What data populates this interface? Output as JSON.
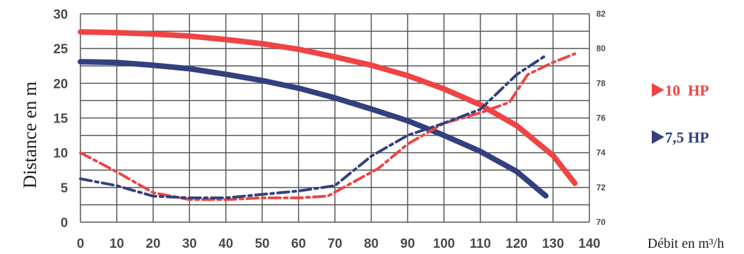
{
  "chart_data": {
    "type": "line",
    "ylabel": "Distance en m",
    "xlabel": "Débit en m³/h",
    "xlim": [
      0,
      140
    ],
    "ylim": [
      0,
      30
    ],
    "y2lim": [
      70,
      82
    ],
    "x_ticks": [
      "0",
      "10",
      "20",
      "30",
      "40",
      "50",
      "60",
      "70",
      "80",
      "90",
      "100",
      "110",
      "120",
      "130",
      "140"
    ],
    "y_ticks": [
      "0",
      "5",
      "10",
      "15",
      "20",
      "25",
      "30"
    ],
    "y2_ticks": [
      "70",
      "72",
      "74",
      "76",
      "78",
      "80",
      "82"
    ],
    "grid": true,
    "legend_position": "right",
    "legend": [
      {
        "label": "10  HP",
        "color": "#ee4444"
      },
      {
        "label": "7,5 HP",
        "color": "#33407e"
      }
    ],
    "series": [
      {
        "name": "10  HP",
        "axis": "left",
        "style": "solid",
        "color": "#ee4444",
        "points": [
          [
            0,
            27.4
          ],
          [
            10,
            27.3
          ],
          [
            20,
            27.1
          ],
          [
            30,
            26.8
          ],
          [
            40,
            26.3
          ],
          [
            50,
            25.7
          ],
          [
            60,
            24.9
          ],
          [
            70,
            23.8
          ],
          [
            80,
            22.6
          ],
          [
            90,
            21.1
          ],
          [
            100,
            19.2
          ],
          [
            110,
            16.9
          ],
          [
            120,
            13.9
          ],
          [
            130,
            9.6
          ],
          [
            136,
            5.6
          ]
        ]
      },
      {
        "name": "7,5 HP",
        "axis": "left",
        "style": "solid",
        "color": "#33407e",
        "points": [
          [
            0,
            23.1
          ],
          [
            10,
            23.0
          ],
          [
            20,
            22.6
          ],
          [
            30,
            22.1
          ],
          [
            40,
            21.3
          ],
          [
            50,
            20.4
          ],
          [
            60,
            19.3
          ],
          [
            70,
            17.9
          ],
          [
            80,
            16.3
          ],
          [
            90,
            14.6
          ],
          [
            100,
            12.5
          ],
          [
            110,
            10.2
          ],
          [
            120,
            7.3
          ],
          [
            128,
            3.8
          ]
        ]
      },
      {
        "name": "10  HP",
        "axis": "right",
        "style": "dash-dot",
        "color": "#ee4444",
        "points": [
          [
            0,
            74.0
          ],
          [
            10,
            72.9
          ],
          [
            20,
            71.7
          ],
          [
            30,
            71.3
          ],
          [
            40,
            71.3
          ],
          [
            50,
            71.4
          ],
          [
            60,
            71.4
          ],
          [
            68,
            71.5
          ],
          [
            75,
            72.3
          ],
          [
            82,
            73.1
          ],
          [
            90,
            74.5
          ],
          [
            100,
            75.7
          ],
          [
            110,
            76.3
          ],
          [
            118,
            76.9
          ],
          [
            123,
            78.5
          ],
          [
            130,
            79.2
          ],
          [
            136,
            79.7
          ]
        ]
      },
      {
        "name": "7,5 HP",
        "axis": "right",
        "style": "dash-dot",
        "color": "#33407e",
        "points": [
          [
            0,
            72.5
          ],
          [
            10,
            72.1
          ],
          [
            20,
            71.5
          ],
          [
            30,
            71.4
          ],
          [
            40,
            71.4
          ],
          [
            50,
            71.6
          ],
          [
            60,
            71.8
          ],
          [
            70,
            72.1
          ],
          [
            80,
            73.8
          ],
          [
            90,
            75.0
          ],
          [
            100,
            75.7
          ],
          [
            110,
            76.5
          ],
          [
            120,
            78.5
          ],
          [
            128,
            79.6
          ]
        ]
      }
    ]
  }
}
